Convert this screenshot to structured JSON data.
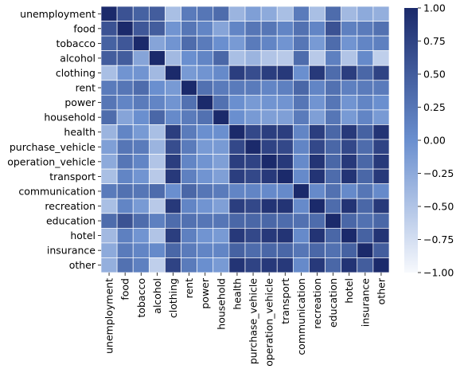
{
  "chart_data": {
    "type": "heatmap",
    "title": "",
    "xlabel": "",
    "ylabel": "",
    "categories": [
      "unemployment",
      "food",
      "tobacco",
      "alcohol",
      "clothing",
      "rent",
      "power",
      "household",
      "health",
      "purchase_vehicle",
      "operation_vehicle",
      "transport",
      "communication",
      "recreation",
      "education",
      "hotel",
      "insurance",
      "other"
    ],
    "values": [
      [
        1.0,
        0.6,
        0.45,
        0.5,
        -0.45,
        0.2,
        0.25,
        0.35,
        -0.35,
        -0.15,
        -0.25,
        -0.45,
        0.2,
        -0.45,
        0.35,
        -0.4,
        -0.25,
        -0.3
      ],
      [
        0.6,
        1.0,
        0.55,
        0.5,
        -0.05,
        0.25,
        0.1,
        -0.2,
        0.1,
        0.25,
        0.25,
        0.1,
        0.3,
        0.1,
        0.6,
        0.15,
        0.2,
        0.3
      ],
      [
        0.45,
        0.55,
        1.0,
        -0.2,
        -0.05,
        0.35,
        0.2,
        0.0,
        -0.1,
        0.2,
        0.1,
        -0.05,
        0.25,
        -0.1,
        0.35,
        -0.05,
        0.1,
        0.15
      ],
      [
        0.5,
        0.5,
        -0.2,
        1.0,
        -0.4,
        0.0,
        0.1,
        0.4,
        -0.45,
        -0.35,
        -0.5,
        -0.55,
        0.35,
        -0.55,
        0.15,
        -0.5,
        0.05,
        -0.6
      ],
      [
        -0.45,
        -0.05,
        -0.05,
        -0.4,
        1.0,
        -0.1,
        -0.05,
        0.05,
        0.8,
        0.65,
        0.8,
        0.85,
        0.0,
        0.85,
        0.35,
        0.8,
        0.4,
        0.75
      ],
      [
        0.2,
        0.25,
        0.35,
        0.0,
        -0.1,
        1.0,
        0.3,
        0.2,
        0.2,
        0.2,
        0.1,
        0.15,
        0.4,
        0.1,
        0.3,
        0.15,
        0.2,
        0.2
      ],
      [
        0.25,
        0.1,
        0.2,
        0.1,
        -0.05,
        0.3,
        1.0,
        0.3,
        0.0,
        -0.1,
        -0.05,
        -0.05,
        0.25,
        -0.05,
        0.25,
        -0.05,
        0.1,
        0.0
      ],
      [
        0.35,
        -0.2,
        0.0,
        0.4,
        0.05,
        0.2,
        0.3,
        1.0,
        0.0,
        -0.1,
        -0.15,
        -0.15,
        0.2,
        -0.15,
        0.25,
        -0.1,
        0.1,
        -0.1
      ],
      [
        -0.35,
        0.1,
        -0.1,
        -0.45,
        0.8,
        0.2,
        0.0,
        0.0,
        1.0,
        0.7,
        0.8,
        0.8,
        0.1,
        0.8,
        0.4,
        0.85,
        0.45,
        0.9
      ],
      [
        -0.15,
        0.25,
        0.2,
        -0.35,
        0.65,
        0.2,
        -0.1,
        -0.1,
        0.7,
        1.0,
        0.75,
        0.7,
        0.1,
        0.7,
        0.4,
        0.7,
        0.35,
        0.75
      ],
      [
        -0.25,
        0.25,
        0.1,
        -0.5,
        0.8,
        0.1,
        -0.05,
        -0.15,
        0.8,
        0.75,
        1.0,
        0.85,
        0.05,
        0.9,
        0.4,
        0.85,
        0.4,
        0.85
      ],
      [
        -0.45,
        0.1,
        -0.05,
        -0.55,
        0.85,
        0.15,
        -0.05,
        -0.15,
        0.8,
        0.7,
        0.85,
        1.0,
        0.05,
        0.9,
        0.35,
        0.9,
        0.4,
        0.85
      ],
      [
        0.2,
        0.3,
        0.25,
        0.35,
        0.0,
        0.4,
        0.25,
        0.2,
        0.1,
        0.1,
        0.05,
        0.05,
        1.0,
        0.05,
        0.3,
        0.05,
        0.25,
        0.05
      ],
      [
        -0.45,
        0.1,
        -0.1,
        -0.55,
        0.85,
        0.1,
        -0.05,
        -0.15,
        0.8,
        0.7,
        0.9,
        0.9,
        0.05,
        1.0,
        0.35,
        0.9,
        0.4,
        0.85
      ],
      [
        0.35,
        0.6,
        0.35,
        0.15,
        0.35,
        0.3,
        0.25,
        0.25,
        0.4,
        0.4,
        0.4,
        0.35,
        0.3,
        0.35,
        1.0,
        0.4,
        0.3,
        0.4
      ],
      [
        -0.4,
        0.15,
        -0.05,
        -0.5,
        0.8,
        0.15,
        -0.05,
        -0.1,
        0.85,
        0.7,
        0.85,
        0.9,
        0.05,
        0.9,
        0.4,
        1.0,
        0.45,
        0.9
      ],
      [
        -0.25,
        0.2,
        0.1,
        0.05,
        0.4,
        0.2,
        0.1,
        0.1,
        0.45,
        0.35,
        0.4,
        0.4,
        0.25,
        0.4,
        0.3,
        0.45,
        1.0,
        0.5
      ],
      [
        -0.3,
        0.3,
        0.15,
        -0.6,
        0.75,
        0.2,
        0.0,
        -0.1,
        0.9,
        0.75,
        0.85,
        0.85,
        0.05,
        0.85,
        0.4,
        0.9,
        0.5,
        1.0
      ]
    ],
    "vmin": -1.0,
    "vmax": 1.0,
    "colorbar_ticks": [
      {
        "value": 1.0,
        "label": "1.00"
      },
      {
        "value": 0.75,
        "label": "0.75"
      },
      {
        "value": 0.5,
        "label": "0.50"
      },
      {
        "value": 0.25,
        "label": "0.25"
      },
      {
        "value": 0.0,
        "label": "0.00"
      },
      {
        "value": -0.25,
        "label": "−0.25"
      },
      {
        "value": -0.5,
        "label": "−0.50"
      },
      {
        "value": -0.75,
        "label": "−0.75"
      },
      {
        "value": -1.0,
        "label": "−1.00"
      }
    ],
    "colors": {
      "low": "#f7f9fd",
      "mid": "#6a8fcf",
      "high": "#1b2a6b"
    },
    "cell_border_color": "#ffffff"
  }
}
